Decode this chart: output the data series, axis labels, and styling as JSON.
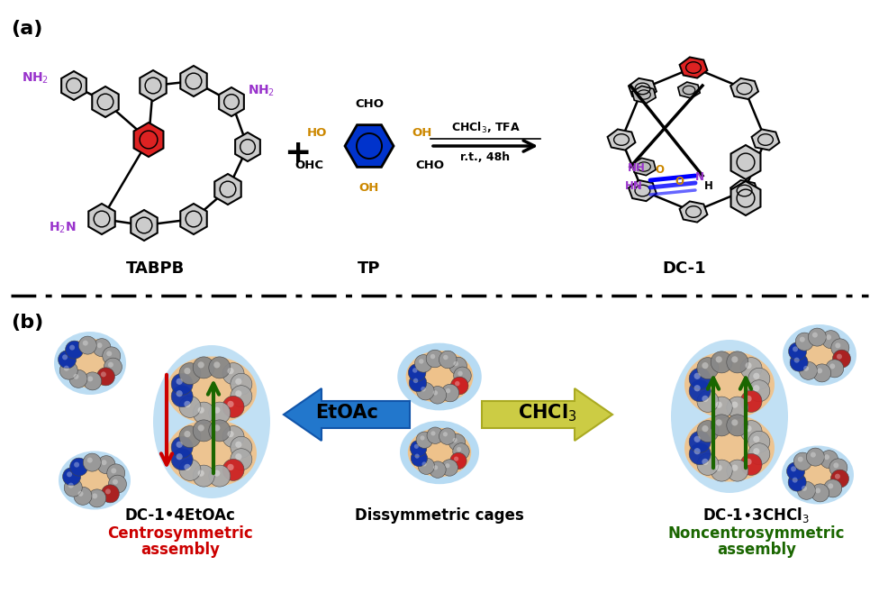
{
  "panel_a_label": "(a)",
  "panel_b_label": "(b)",
  "tabpb_label": "TABPB",
  "tp_label": "TP",
  "dc1_label": "DC-1",
  "reaction_conditions": "CHCl$_3$, TFA",
  "reaction_time": "r.t., 48h",
  "ethoac_label": "EtOAc",
  "chcl3_label": "CHCl$_3$",
  "dissym_label": "Dissymmetric cages",
  "dc1_ethoac_label": "DC-1•4EtOAc",
  "centrosym_line1": "Centrosymmetric",
  "centrosym_line2": "assembly",
  "dc1_chcl3_label": "DC-1•3CHCl$_3$",
  "noncentrosym_line1": "Noncentrosymmetric",
  "noncentrosym_line2": "assembly",
  "bg_color": "#ffffff",
  "red_color": "#cc0000",
  "blue_color": "#0033cc",
  "green_color": "#1a6600",
  "purple_color": "#9933cc",
  "orange_color": "#cc8800",
  "blue_arrow_color": "#2277cc",
  "yellow_arrow_color": "#cccc44",
  "gray_ring_color": "#cccccc",
  "orange_bg": "#f5c080",
  "light_blue_bg": "#99ccee"
}
